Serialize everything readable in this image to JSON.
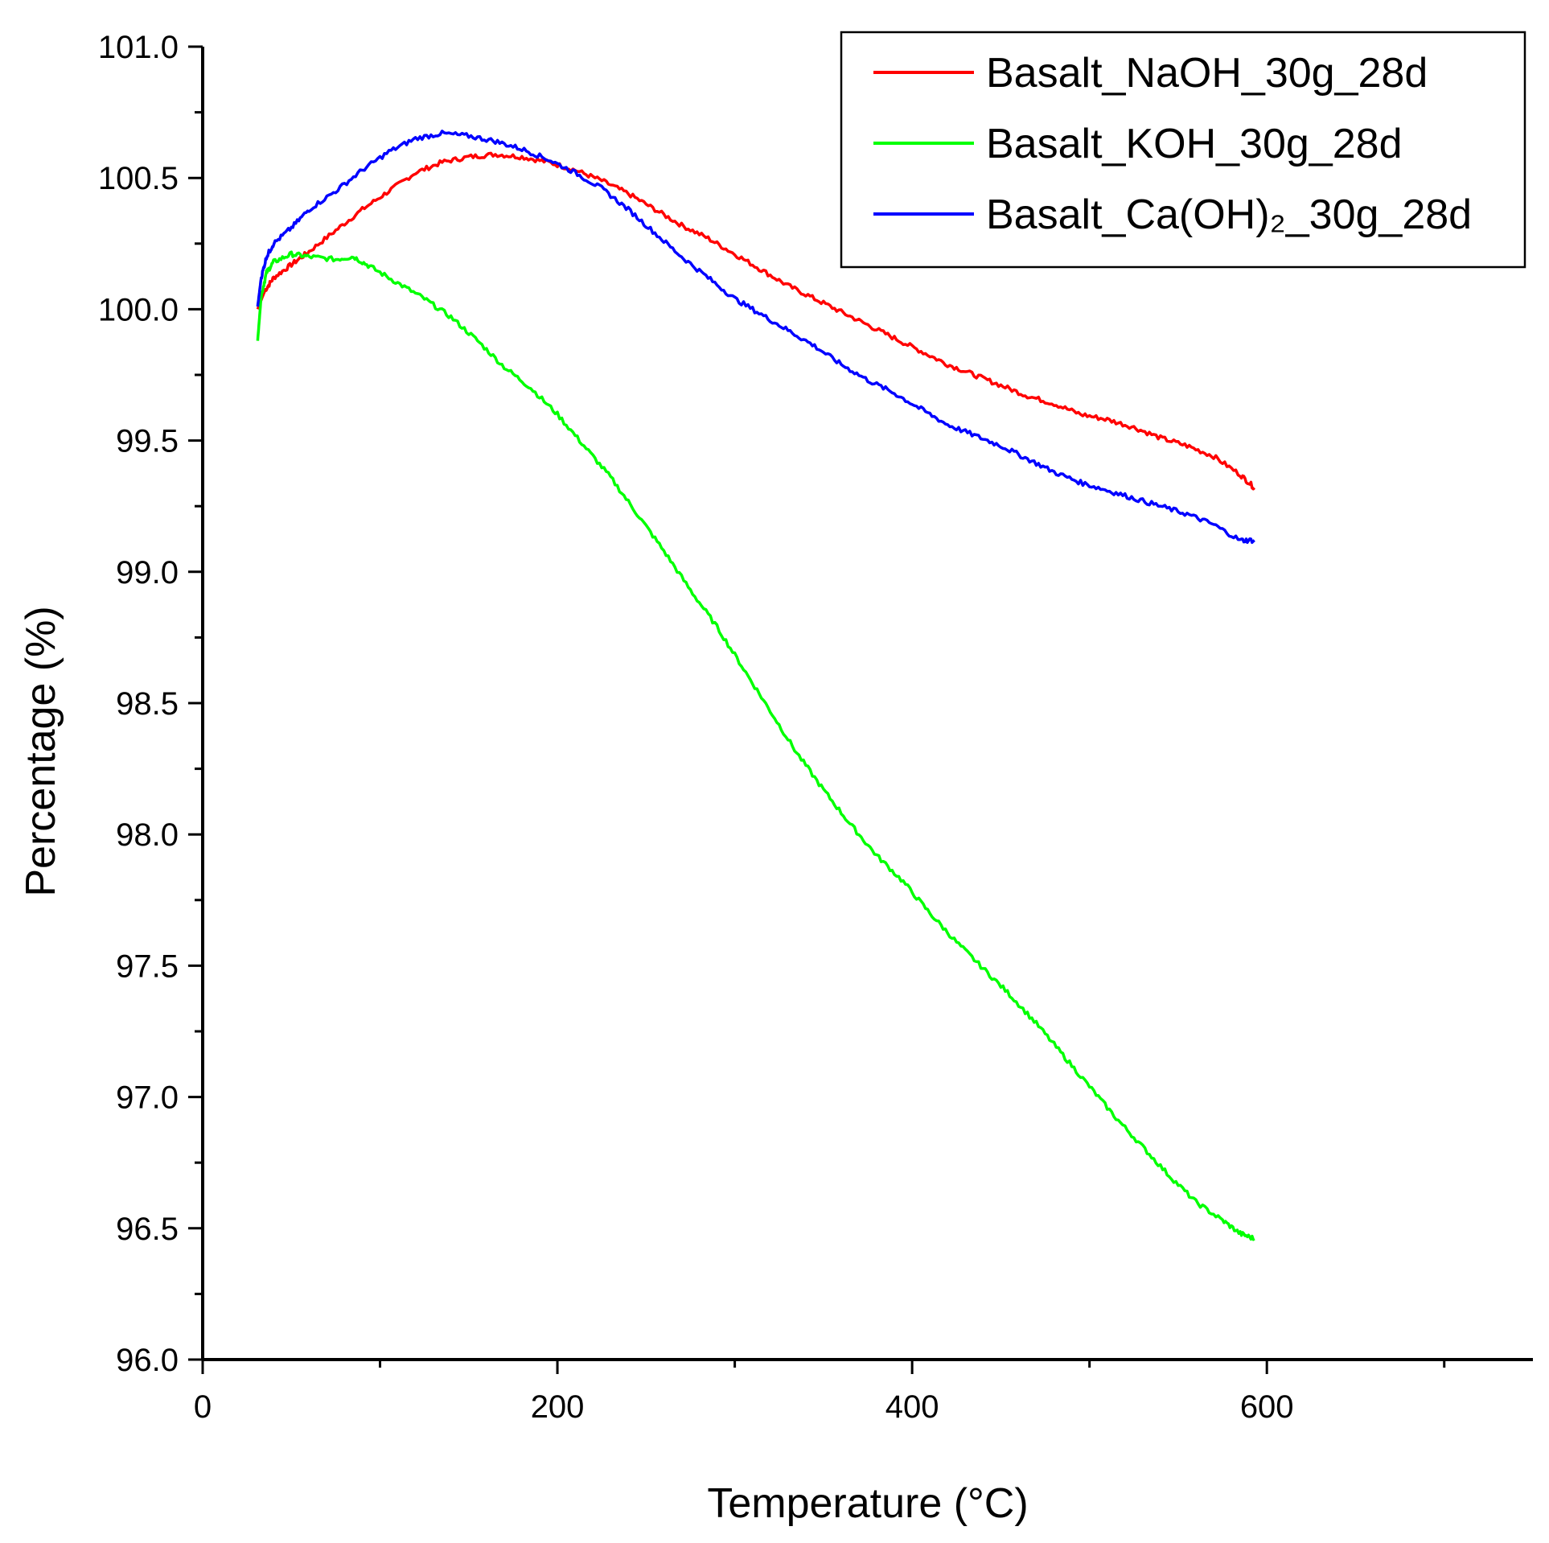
{
  "chart_data": {
    "type": "line",
    "title": "",
    "xlabel": "Temperature (°C)",
    "ylabel": "Percentage (%)",
    "xlim": [
      0,
      750
    ],
    "ylim": [
      96.0,
      101.0
    ],
    "x_ticks": [
      0,
      200,
      400,
      600
    ],
    "x_tick_labels": [
      "0",
      "200",
      "400",
      "600"
    ],
    "x_minor_step": 100,
    "y_ticks": [
      96.0,
      96.5,
      97.0,
      97.5,
      98.0,
      98.5,
      99.0,
      99.5,
      100.0,
      100.5,
      101.0
    ],
    "y_tick_labels": [
      "96.0",
      "96.5",
      "97.0",
      "97.5",
      "98.0",
      "98.5",
      "99.0",
      "99.5",
      "100.0",
      "100.5",
      "101.0"
    ],
    "y_minor_step": 0.25,
    "grid": false,
    "legend_position": "top-right",
    "series": [
      {
        "name": "Basalt_NaOH_30g_28d",
        "color": "#ff0000",
        "x": [
          31,
          35,
          40,
          50,
          60,
          75,
          90,
          105,
          120,
          135,
          150,
          165,
          180,
          195,
          210,
          225,
          240,
          255,
          270,
          285,
          300,
          315,
          330,
          345,
          360,
          375,
          390,
          405,
          420,
          435,
          450,
          465,
          480,
          495,
          510,
          525,
          540,
          555,
          570,
          585,
          593
        ],
        "y": [
          100.0,
          100.07,
          100.12,
          100.17,
          100.22,
          100.3,
          100.38,
          100.45,
          100.52,
          100.56,
          100.58,
          100.59,
          100.58,
          100.56,
          100.53,
          100.49,
          100.44,
          100.38,
          100.32,
          100.27,
          100.21,
          100.15,
          100.09,
          100.04,
          99.99,
          99.94,
          99.89,
          99.84,
          99.79,
          99.75,
          99.71,
          99.67,
          99.64,
          99.6,
          99.58,
          99.55,
          99.51,
          99.48,
          99.44,
          99.37,
          99.32
        ]
      },
      {
        "name": "Basalt_KOH_30g_28d",
        "color": "#00ff00",
        "x": [
          31,
          33,
          36,
          40,
          50,
          60,
          75,
          85,
          95,
          110,
          125,
          140,
          155,
          170,
          185,
          200,
          215,
          230,
          245,
          260,
          275,
          290,
          305,
          320,
          335,
          350,
          365,
          380,
          395,
          410,
          425,
          440,
          455,
          470,
          485,
          500,
          515,
          530,
          545,
          560,
          575,
          585,
          593
        ],
        "y": [
          99.88,
          100.05,
          100.14,
          100.18,
          100.21,
          100.2,
          100.19,
          100.2,
          100.16,
          100.1,
          100.04,
          99.97,
          99.88,
          99.78,
          99.7,
          99.6,
          99.48,
          99.36,
          99.22,
          99.08,
          98.93,
          98.79,
          98.63,
          98.47,
          98.31,
          98.17,
          98.04,
          97.92,
          97.82,
          97.7,
          97.59,
          97.49,
          97.39,
          97.28,
          97.16,
          97.04,
          96.92,
          96.81,
          96.7,
          96.6,
          96.53,
          96.48,
          96.46
        ]
      },
      {
        "name": "Basalt_Ca(OH)₂_30g_28d",
        "color": "#0000ff",
        "x": [
          31,
          33,
          36,
          40,
          50,
          60,
          75,
          90,
          105,
          120,
          135,
          150,
          165,
          180,
          195,
          210,
          225,
          240,
          255,
          270,
          285,
          300,
          315,
          330,
          345,
          360,
          375,
          390,
          405,
          420,
          435,
          450,
          465,
          480,
          495,
          510,
          525,
          540,
          555,
          570,
          585,
          593
        ],
        "y": [
          100.01,
          100.12,
          100.2,
          100.25,
          100.31,
          100.38,
          100.45,
          100.53,
          100.6,
          100.65,
          100.67,
          100.66,
          100.64,
          100.61,
          100.57,
          100.52,
          100.46,
          100.38,
          100.29,
          100.2,
          100.12,
          100.04,
          99.98,
          99.92,
          99.86,
          99.79,
          99.73,
          99.68,
          99.62,
          99.56,
          99.52,
          99.48,
          99.43,
          99.38,
          99.34,
          99.31,
          99.28,
          99.25,
          99.22,
          99.18,
          99.12,
          99.12
        ]
      }
    ]
  }
}
